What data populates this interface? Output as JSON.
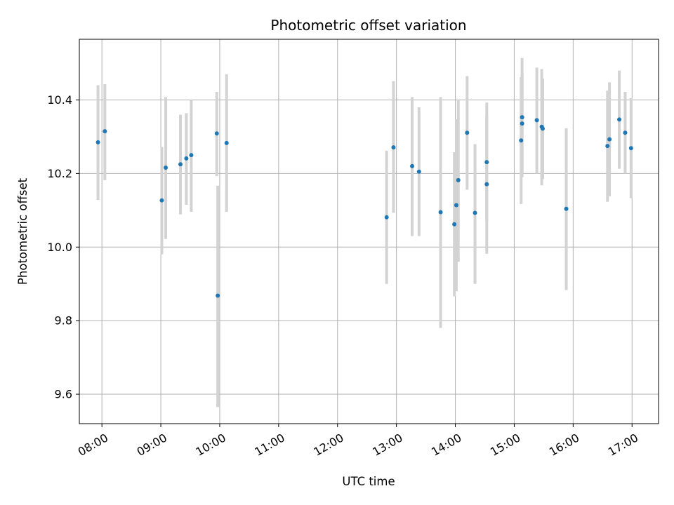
{
  "chart_data": {
    "type": "scatter",
    "title": "Photometric offset variation",
    "xlabel": "UTC time",
    "ylabel": "Photometric offset",
    "xlim": [
      "07:37",
      "17:27"
    ],
    "ylim": [
      9.52,
      10.565
    ],
    "x_ticks": [
      "08:00",
      "09:00",
      "10:00",
      "11:00",
      "12:00",
      "13:00",
      "14:00",
      "15:00",
      "16:00",
      "17:00"
    ],
    "y_ticks": [
      "9.6",
      "9.8",
      "10.0",
      "10.2",
      "10.4"
    ],
    "grid": true,
    "colors": {
      "point": "#1f77b4",
      "errorbar": "#d3d3d3",
      "grid": "#b0b0b0"
    },
    "points": [
      {
        "x": "07:56",
        "y": 10.285,
        "low": 10.128,
        "high": 10.44
      },
      {
        "x": "08:03",
        "y": 10.315,
        "low": 10.182,
        "high": 10.443
      },
      {
        "x": "09:01",
        "y": 10.127,
        "low": 9.98,
        "high": 10.272
      },
      {
        "x": "09:05",
        "y": 10.216,
        "low": 10.022,
        "high": 10.408
      },
      {
        "x": "09:20",
        "y": 10.225,
        "low": 10.089,
        "high": 10.36
      },
      {
        "x": "09:26",
        "y": 10.241,
        "low": 10.115,
        "high": 10.364
      },
      {
        "x": "09:31",
        "y": 10.25,
        "low": 10.096,
        "high": 10.4
      },
      {
        "x": "09:57",
        "y": 10.309,
        "low": 10.193,
        "high": 10.422
      },
      {
        "x": "09:58",
        "y": 9.868,
        "low": 9.565,
        "high": 10.167
      },
      {
        "x": "10:07",
        "y": 10.283,
        "low": 10.096,
        "high": 10.47
      },
      {
        "x": "12:50",
        "y": 10.081,
        "low": 9.9,
        "high": 10.262
      },
      {
        "x": "12:57",
        "y": 10.271,
        "low": 10.093,
        "high": 10.451
      },
      {
        "x": "13:16",
        "y": 10.22,
        "low": 10.03,
        "high": 10.408
      },
      {
        "x": "13:23",
        "y": 10.205,
        "low": 10.03,
        "high": 10.38
      },
      {
        "x": "13:45",
        "y": 10.095,
        "low": 9.78,
        "high": 10.408
      },
      {
        "x": "13:59",
        "y": 10.062,
        "low": 9.866,
        "high": 10.258
      },
      {
        "x": "14:01",
        "y": 10.114,
        "low": 9.88,
        "high": 10.348
      },
      {
        "x": "14:03",
        "y": 10.182,
        "low": 9.96,
        "high": 10.402
      },
      {
        "x": "14:12",
        "y": 10.311,
        "low": 10.156,
        "high": 10.465
      },
      {
        "x": "14:20",
        "y": 10.093,
        "low": 9.9,
        "high": 10.28
      },
      {
        "x": "14:32",
        "y": 10.231,
        "low": 10.068,
        "high": 10.393
      },
      {
        "x": "14:32",
        "y": 10.171,
        "low": 9.982,
        "high": 10.358
      },
      {
        "x": "15:07",
        "y": 10.29,
        "low": 10.117,
        "high": 10.462
      },
      {
        "x": "15:08",
        "y": 10.336,
        "low": 10.202,
        "high": 10.47
      },
      {
        "x": "15:08",
        "y": 10.353,
        "low": 10.19,
        "high": 10.514
      },
      {
        "x": "15:23",
        "y": 10.345,
        "low": 10.2,
        "high": 10.488
      },
      {
        "x": "15:28",
        "y": 10.327,
        "low": 10.168,
        "high": 10.484
      },
      {
        "x": "15:29",
        "y": 10.322,
        "low": 10.185,
        "high": 10.458
      },
      {
        "x": "15:53",
        "y": 10.104,
        "low": 9.883,
        "high": 10.323
      },
      {
        "x": "16:35",
        "y": 10.275,
        "low": 10.123,
        "high": 10.425
      },
      {
        "x": "16:37",
        "y": 10.293,
        "low": 10.138,
        "high": 10.448
      },
      {
        "x": "16:47",
        "y": 10.347,
        "low": 10.213,
        "high": 10.48
      },
      {
        "x": "16:53",
        "y": 10.311,
        "low": 10.2,
        "high": 10.422
      },
      {
        "x": "16:59",
        "y": 10.269,
        "low": 10.133,
        "high": 10.405
      }
    ]
  }
}
